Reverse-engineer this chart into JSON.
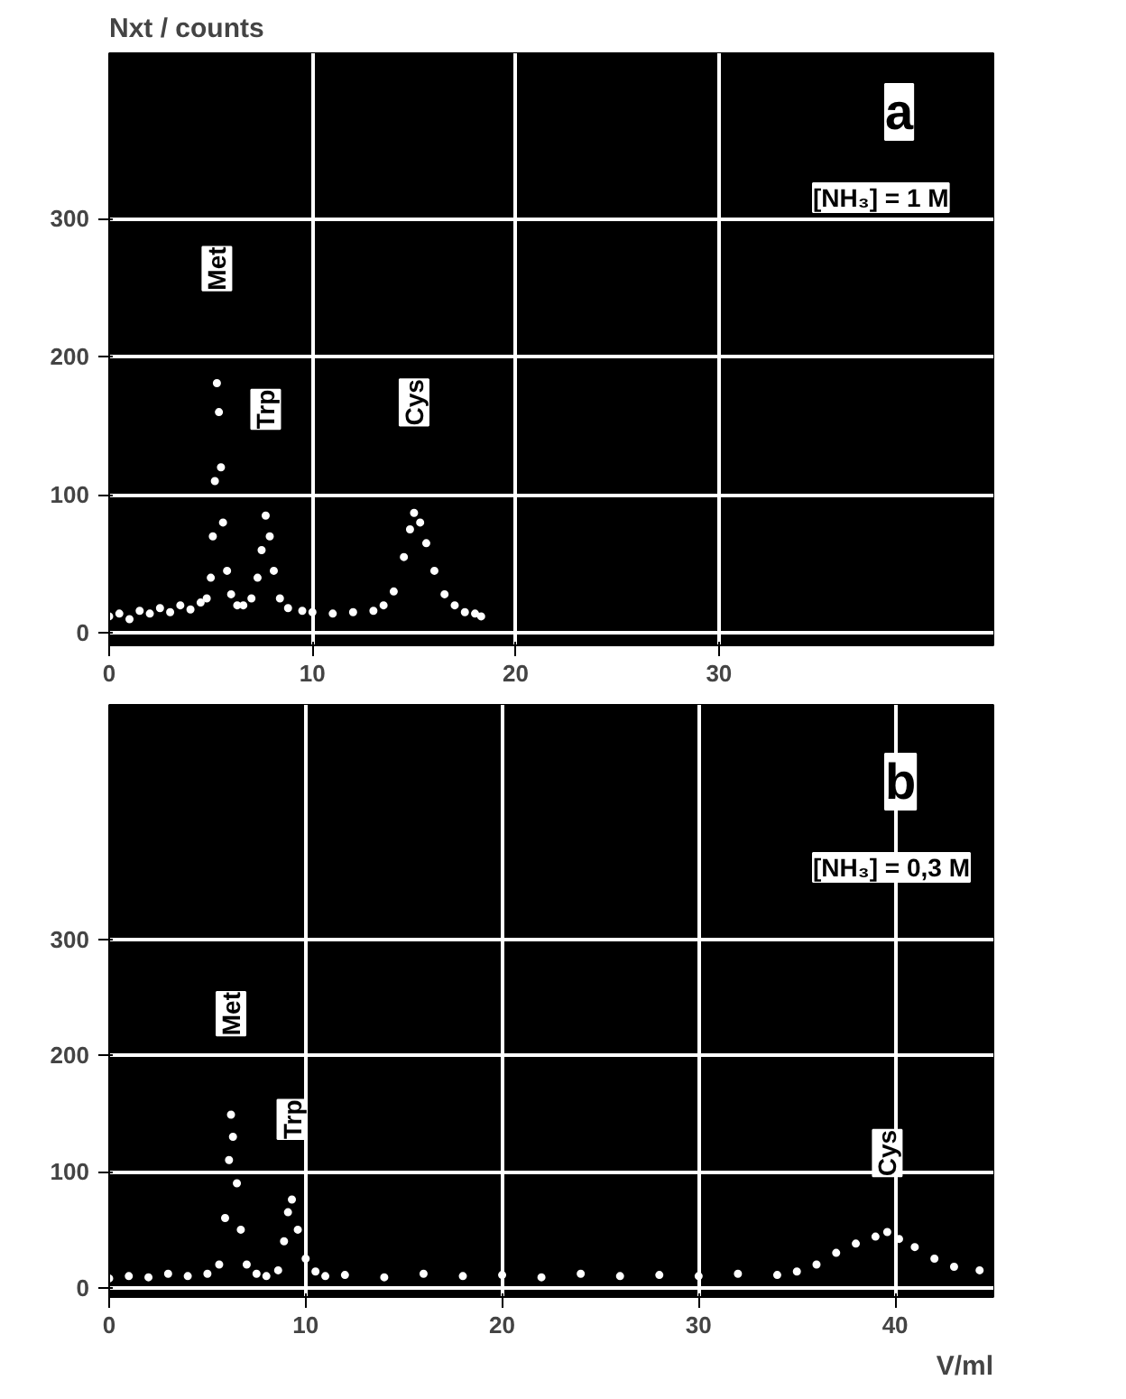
{
  "chart_data": [
    {
      "type": "scatter",
      "ylabel": "Nxt / counts",
      "marker": "circle",
      "grid": true,
      "xlim": [
        0,
        43.5
      ],
      "ylim": [
        -9,
        420
      ],
      "xticks": [
        0,
        10,
        20,
        30
      ],
      "yticks": [
        0,
        100,
        200,
        300
      ],
      "annotations": [
        "a",
        "[NH₃] = 1 M",
        {
          "text": "Met",
          "x": 5.3,
          "y": 264
        },
        {
          "text": "Trp",
          "x": 7.7,
          "y": 162
        },
        {
          "text": "Cys",
          "x": 15.0,
          "y": 167
        }
      ],
      "series": [
        {
          "color": "#ffffff",
          "x": [
            0,
            0.5,
            1,
            1.5,
            2,
            2.5,
            3,
            3.5,
            4,
            4.5,
            4.8,
            5.0,
            5.1,
            5.2,
            5.3,
            5.4,
            5.5,
            5.6,
            5.8,
            6.0,
            6.3,
            6.6,
            7.0,
            7.3,
            7.5,
            7.7,
            7.9,
            8.1,
            8.4,
            8.8,
            9.5,
            10,
            11,
            12,
            13,
            13.5,
            14,
            14.5,
            14.8,
            15.0,
            15.3,
            15.6,
            16,
            16.5,
            17,
            17.5,
            18,
            18.3
          ],
          "values": [
            12,
            14,
            10,
            16,
            14,
            18,
            15,
            20,
            17,
            22,
            25,
            40,
            70,
            110,
            181,
            160,
            120,
            80,
            45,
            28,
            20,
            20,
            25,
            40,
            60,
            85,
            70,
            45,
            25,
            18,
            16,
            15,
            14,
            15,
            16,
            20,
            30,
            55,
            75,
            87,
            80,
            65,
            45,
            28,
            20,
            15,
            14,
            12
          ]
        }
      ]
    },
    {
      "type": "scatter",
      "xlabel": "V/ml",
      "marker": "circle",
      "grid": true,
      "xlim": [
        0,
        45
      ],
      "ylim": [
        -8,
        502
      ],
      "xticks": [
        0,
        10,
        20,
        30,
        40
      ],
      "yticks": [
        0,
        100,
        200,
        300
      ],
      "annotations": [
        "b",
        "[NH₃] = 0,3 M",
        {
          "text": "Met",
          "x": 6.2,
          "y": 236
        },
        {
          "text": "Trp",
          "x": 9.3,
          "y": 145
        },
        {
          "text": "Cys",
          "x": 39.6,
          "y": 116
        }
      ],
      "series": [
        {
          "color": "#ffffff",
          "x": [
            0,
            1,
            2,
            3,
            4,
            5,
            5.6,
            5.9,
            6.1,
            6.2,
            6.3,
            6.5,
            6.7,
            7.0,
            7.5,
            8,
            8.6,
            8.9,
            9.1,
            9.3,
            9.6,
            10,
            10.5,
            11,
            12,
            14,
            16,
            18,
            20,
            22,
            24,
            26,
            28,
            30,
            32,
            34,
            35,
            36,
            37,
            38,
            39,
            39.6,
            40.2,
            41,
            42,
            43,
            44.3
          ],
          "values": [
            8,
            10,
            9,
            12,
            10,
            12,
            20,
            60,
            110,
            149,
            130,
            90,
            50,
            20,
            12,
            10,
            15,
            40,
            65,
            76,
            50,
            25,
            14,
            10,
            11,
            9,
            12,
            10,
            11,
            9,
            12,
            10,
            11,
            10,
            12,
            11,
            14,
            20,
            30,
            38,
            44,
            48,
            42,
            35,
            25,
            18,
            15
          ]
        }
      ]
    }
  ]
}
